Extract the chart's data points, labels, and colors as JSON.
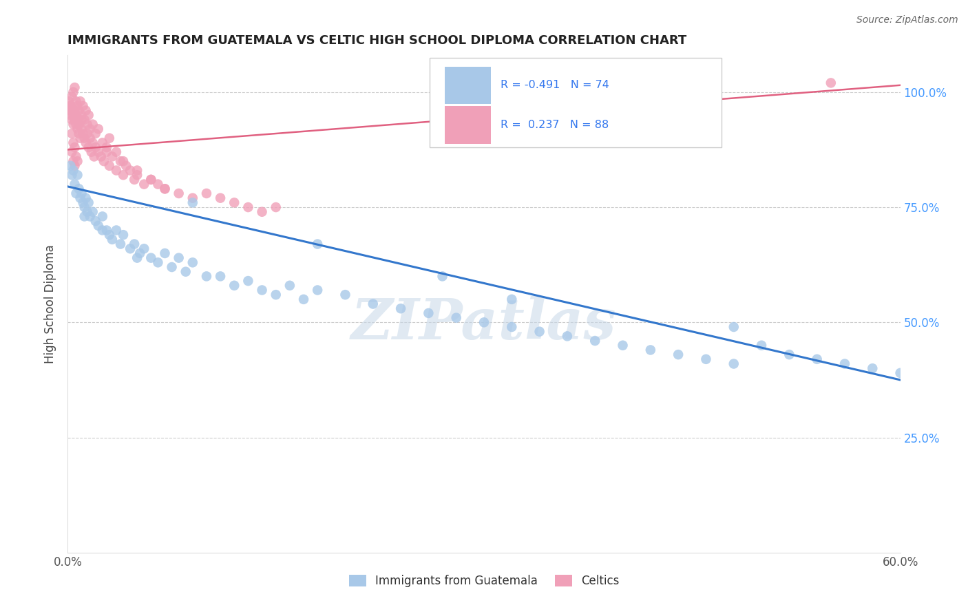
{
  "title": "IMMIGRANTS FROM GUATEMALA VS CELTIC HIGH SCHOOL DIPLOMA CORRELATION CHART",
  "source": "Source: ZipAtlas.com",
  "ylabel": "High School Diploma",
  "xlim": [
    0.0,
    0.6
  ],
  "ylim": [
    0.0,
    1.08
  ],
  "grid_color": "#cccccc",
  "background_color": "#ffffff",
  "blue_color": "#a8c8e8",
  "pink_color": "#f0a0b8",
  "blue_line_color": "#3377cc",
  "pink_line_color": "#e06080",
  "watermark": "ZIPatlas",
  "blue_line_x0": 0.0,
  "blue_line_y0": 0.795,
  "blue_line_x1": 0.6,
  "blue_line_y1": 0.375,
  "pink_line_x0": 0.0,
  "pink_line_y0": 0.875,
  "pink_line_x1": 0.6,
  "pink_line_y1": 1.015,
  "blue_x": [
    0.002,
    0.003,
    0.004,
    0.005,
    0.006,
    0.007,
    0.008,
    0.009,
    0.01,
    0.011,
    0.012,
    0.013,
    0.014,
    0.015,
    0.016,
    0.018,
    0.02,
    0.022,
    0.025,
    0.028,
    0.03,
    0.032,
    0.035,
    0.038,
    0.04,
    0.045,
    0.048,
    0.052,
    0.055,
    0.06,
    0.065,
    0.07,
    0.075,
    0.08,
    0.085,
    0.09,
    0.1,
    0.11,
    0.12,
    0.13,
    0.14,
    0.15,
    0.16,
    0.17,
    0.18,
    0.2,
    0.22,
    0.24,
    0.26,
    0.28,
    0.3,
    0.32,
    0.34,
    0.36,
    0.38,
    0.4,
    0.42,
    0.44,
    0.46,
    0.48,
    0.5,
    0.52,
    0.54,
    0.56,
    0.58,
    0.6,
    0.48,
    0.32,
    0.27,
    0.18,
    0.09,
    0.05,
    0.025,
    0.012
  ],
  "blue_y": [
    0.84,
    0.82,
    0.83,
    0.8,
    0.78,
    0.82,
    0.79,
    0.77,
    0.78,
    0.76,
    0.75,
    0.77,
    0.74,
    0.76,
    0.73,
    0.74,
    0.72,
    0.71,
    0.73,
    0.7,
    0.69,
    0.68,
    0.7,
    0.67,
    0.69,
    0.66,
    0.67,
    0.65,
    0.66,
    0.64,
    0.63,
    0.65,
    0.62,
    0.64,
    0.61,
    0.63,
    0.6,
    0.6,
    0.58,
    0.59,
    0.57,
    0.56,
    0.58,
    0.55,
    0.57,
    0.56,
    0.54,
    0.53,
    0.52,
    0.51,
    0.5,
    0.49,
    0.48,
    0.47,
    0.46,
    0.45,
    0.44,
    0.43,
    0.42,
    0.41,
    0.45,
    0.43,
    0.42,
    0.41,
    0.4,
    0.39,
    0.49,
    0.55,
    0.6,
    0.67,
    0.76,
    0.64,
    0.7,
    0.73
  ],
  "pink_x": [
    0.001,
    0.001,
    0.002,
    0.002,
    0.003,
    0.003,
    0.004,
    0.004,
    0.005,
    0.005,
    0.006,
    0.006,
    0.007,
    0.007,
    0.008,
    0.008,
    0.009,
    0.01,
    0.01,
    0.011,
    0.012,
    0.013,
    0.014,
    0.015,
    0.016,
    0.017,
    0.018,
    0.019,
    0.02,
    0.022,
    0.024,
    0.026,
    0.028,
    0.03,
    0.032,
    0.035,
    0.038,
    0.04,
    0.042,
    0.045,
    0.048,
    0.05,
    0.055,
    0.06,
    0.065,
    0.07,
    0.08,
    0.09,
    0.1,
    0.11,
    0.12,
    0.13,
    0.14,
    0.15,
    0.002,
    0.003,
    0.004,
    0.005,
    0.006,
    0.007,
    0.008,
    0.009,
    0.01,
    0.011,
    0.012,
    0.013,
    0.014,
    0.015,
    0.016,
    0.018,
    0.02,
    0.022,
    0.025,
    0.028,
    0.03,
    0.035,
    0.04,
    0.05,
    0.06,
    0.07,
    0.003,
    0.004,
    0.005,
    0.006,
    0.007,
    0.55,
    0.003,
    0.004,
    0.005,
    0.008
  ],
  "pink_y": [
    0.96,
    0.98,
    0.95,
    0.97,
    0.94,
    0.96,
    0.93,
    0.95,
    0.94,
    0.96,
    0.93,
    0.95,
    0.92,
    0.94,
    0.91,
    0.93,
    0.9,
    0.92,
    0.94,
    0.91,
    0.9,
    0.89,
    0.91,
    0.88,
    0.9,
    0.87,
    0.89,
    0.86,
    0.88,
    0.87,
    0.86,
    0.85,
    0.87,
    0.84,
    0.86,
    0.83,
    0.85,
    0.82,
    0.84,
    0.83,
    0.81,
    0.82,
    0.8,
    0.81,
    0.8,
    0.79,
    0.78,
    0.77,
    0.78,
    0.77,
    0.76,
    0.75,
    0.74,
    0.75,
    0.97,
    0.99,
    1.0,
    1.01,
    0.98,
    0.97,
    0.96,
    0.98,
    0.95,
    0.97,
    0.94,
    0.96,
    0.93,
    0.95,
    0.92,
    0.93,
    0.91,
    0.92,
    0.89,
    0.88,
    0.9,
    0.87,
    0.85,
    0.83,
    0.81,
    0.79,
    0.91,
    0.89,
    0.88,
    0.86,
    0.85,
    1.02,
    0.87,
    0.85,
    0.84,
    0.93
  ]
}
